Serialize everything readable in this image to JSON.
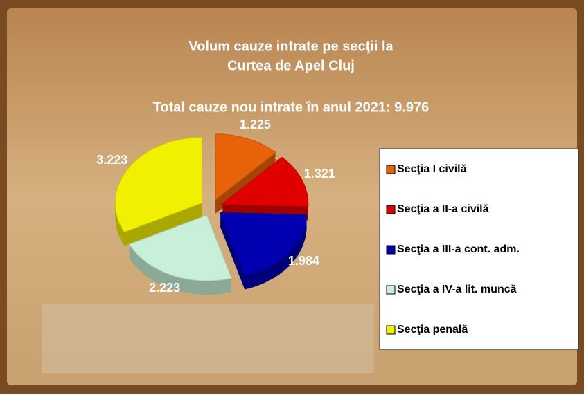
{
  "chart_data": {
    "type": "pie",
    "title": [
      "Volum cauze intrate pe secţii la",
      "Curtea de Apel Cluj"
    ],
    "subtitle": "Total cauze nou intrate în anul 2021: 9.976",
    "categories": [
      "Secţia I civilă",
      "Secţia a II-a civilă",
      "Secţia a III-a cont. adm.",
      "Secţia a IV-a lit. muncă",
      "Secţia penală"
    ],
    "values": [
      1225,
      1321,
      1984,
      2223,
      3223
    ],
    "value_labels": [
      "1.225",
      "1.321",
      "1.984",
      "2.223",
      "3.223"
    ],
    "colors": [
      "#e8620a",
      "#e00000",
      "#0000b0",
      "#c8f0d8",
      "#f0f000"
    ],
    "legend": "right"
  }
}
